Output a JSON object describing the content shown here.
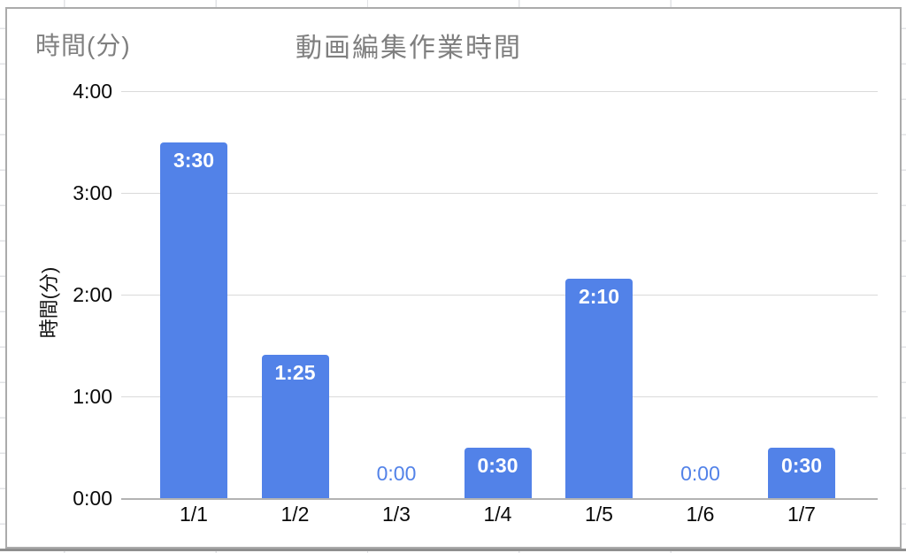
{
  "chart": {
    "corner_axis_label": "時間(分)",
    "colors": {
      "bar": "#5282e8",
      "title_gray": "#7f7f7f",
      "gridline": "#dadada",
      "baseline": "#b3b3b3",
      "tick_text": "#0a0a0a",
      "bar_label_text": "#ffffff"
    }
  },
  "chart_data": {
    "type": "bar",
    "title": "動画編集作業時間",
    "xlabel": "",
    "ylabel": "時間(分)",
    "categories": [
      "1/1",
      "1/2",
      "1/3",
      "1/4",
      "1/5",
      "1/6",
      "1/7"
    ],
    "values_hours": [
      3.5,
      1.4167,
      0,
      0.5,
      2.1667,
      0,
      0.5
    ],
    "bar_labels": [
      "3:30",
      "1:25",
      "0:00",
      "0:30",
      "2:10",
      "0:00",
      "0:30"
    ],
    "y_tick_labels": [
      "0:00",
      "1:00",
      "2:00",
      "3:00",
      "4:00"
    ],
    "ylim": [
      0,
      4
    ],
    "grid": true,
    "legend": false,
    "series_name": "時間(分)",
    "bar_color": "#5282e8"
  }
}
